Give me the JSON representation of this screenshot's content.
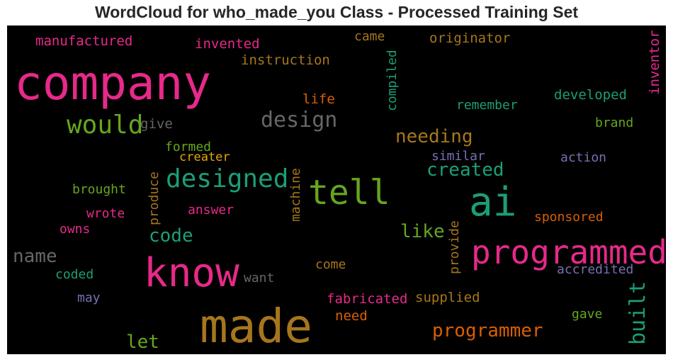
{
  "title": "WordCloud for who_made_you Class - Processed Training Set",
  "chart_data": {
    "type": "wordcloud",
    "title": "WordCloud for who_made_you Class - Processed Training Set",
    "background": "#000000",
    "words": [
      {
        "text": "made",
        "weight": 1.0,
        "color": "#a6761d",
        "orientation": "horizontal"
      },
      {
        "text": "company",
        "weight": 0.92,
        "color": "#e7298a",
        "orientation": "horizontal"
      },
      {
        "text": "know",
        "weight": 0.82,
        "color": "#e7298a",
        "orientation": "horizontal"
      },
      {
        "text": "programmed",
        "weight": 0.72,
        "color": "#e7298a",
        "orientation": "horizontal"
      },
      {
        "text": "ai",
        "weight": 0.72,
        "color": "#1b9e77",
        "orientation": "horizontal"
      },
      {
        "text": "tell",
        "weight": 0.66,
        "color": "#66a61e",
        "orientation": "horizontal"
      },
      {
        "text": "designed",
        "weight": 0.52,
        "color": "#1b9e77",
        "orientation": "horizontal"
      },
      {
        "text": "would",
        "weight": 0.5,
        "color": "#66a61e",
        "orientation": "horizontal"
      },
      {
        "text": "design",
        "weight": 0.44,
        "color": "#666666",
        "orientation": "horizontal"
      },
      {
        "text": "built",
        "weight": 0.44,
        "color": "#1b9e77",
        "orientation": "vertical"
      },
      {
        "text": "needing",
        "weight": 0.42,
        "color": "#a6761d",
        "orientation": "horizontal"
      },
      {
        "text": "programmer",
        "weight": 0.4,
        "color": "#d95f02",
        "orientation": "horizontal"
      },
      {
        "text": "created",
        "weight": 0.4,
        "color": "#1b9e77",
        "orientation": "horizontal"
      },
      {
        "text": "code",
        "weight": 0.38,
        "color": "#1b9e77",
        "orientation": "horizontal"
      },
      {
        "text": "like",
        "weight": 0.38,
        "color": "#66a61e",
        "orientation": "horizontal"
      },
      {
        "text": "name",
        "weight": 0.38,
        "color": "#666666",
        "orientation": "horizontal"
      },
      {
        "text": "let",
        "weight": 0.38,
        "color": "#66a61e",
        "orientation": "horizontal"
      },
      {
        "text": "manufactured",
        "weight": 0.3,
        "color": "#e7298a",
        "orientation": "horizontal"
      },
      {
        "text": "invented",
        "weight": 0.3,
        "color": "#e7298a",
        "orientation": "horizontal"
      },
      {
        "text": "instruction",
        "weight": 0.3,
        "color": "#a6761d",
        "orientation": "horizontal"
      },
      {
        "text": "came",
        "weight": 0.28,
        "color": "#a6761d",
        "orientation": "horizontal"
      },
      {
        "text": "originator",
        "weight": 0.3,
        "color": "#a6761d",
        "orientation": "horizontal"
      },
      {
        "text": "compiled",
        "weight": 0.28,
        "color": "#1b9e77",
        "orientation": "vertical"
      },
      {
        "text": "inventor",
        "weight": 0.3,
        "color": "#e7298a",
        "orientation": "vertical"
      },
      {
        "text": "life",
        "weight": 0.28,
        "color": "#d95f02",
        "orientation": "horizontal"
      },
      {
        "text": "developed",
        "weight": 0.3,
        "color": "#1b9e77",
        "orientation": "horizontal"
      },
      {
        "text": "remember",
        "weight": 0.28,
        "color": "#1b9e77",
        "orientation": "horizontal"
      },
      {
        "text": "give",
        "weight": 0.28,
        "color": "#666666",
        "orientation": "horizontal"
      },
      {
        "text": "brand",
        "weight": 0.28,
        "color": "#66a61e",
        "orientation": "horizontal"
      },
      {
        "text": "formed",
        "weight": 0.27,
        "color": "#66a61e",
        "orientation": "horizontal"
      },
      {
        "text": "creater",
        "weight": 0.27,
        "color": "#e6ab02",
        "orientation": "horizontal"
      },
      {
        "text": "similar",
        "weight": 0.27,
        "color": "#7570b3",
        "orientation": "horizontal"
      },
      {
        "text": "action",
        "weight": 0.27,
        "color": "#7570b3",
        "orientation": "horizontal"
      },
      {
        "text": "brought",
        "weight": 0.27,
        "color": "#66a61e",
        "orientation": "horizontal"
      },
      {
        "text": "produce",
        "weight": 0.27,
        "color": "#a6761d",
        "orientation": "vertical"
      },
      {
        "text": "machine",
        "weight": 0.27,
        "color": "#a6761d",
        "orientation": "vertical"
      },
      {
        "text": "answer",
        "weight": 0.27,
        "color": "#e7298a",
        "orientation": "horizontal"
      },
      {
        "text": "wrote",
        "weight": 0.27,
        "color": "#e7298a",
        "orientation": "horizontal"
      },
      {
        "text": "owns",
        "weight": 0.27,
        "color": "#e7298a",
        "orientation": "horizontal"
      },
      {
        "text": "sponsored",
        "weight": 0.28,
        "color": "#d95f02",
        "orientation": "horizontal"
      },
      {
        "text": "provide",
        "weight": 0.27,
        "color": "#a6761d",
        "orientation": "vertical"
      },
      {
        "text": "come",
        "weight": 0.27,
        "color": "#a6761d",
        "orientation": "horizontal"
      },
      {
        "text": "accredited",
        "weight": 0.27,
        "color": "#7570b3",
        "orientation": "horizontal"
      },
      {
        "text": "coded",
        "weight": 0.27,
        "color": "#1b9e77",
        "orientation": "horizontal"
      },
      {
        "text": "want",
        "weight": 0.27,
        "color": "#666666",
        "orientation": "horizontal"
      },
      {
        "text": "may",
        "weight": 0.27,
        "color": "#7570b3",
        "orientation": "horizontal"
      },
      {
        "text": "fabricated",
        "weight": 0.28,
        "color": "#e7298a",
        "orientation": "horizontal"
      },
      {
        "text": "supplied",
        "weight": 0.28,
        "color": "#a6761d",
        "orientation": "horizontal"
      },
      {
        "text": "need",
        "weight": 0.27,
        "color": "#d95f02",
        "orientation": "horizontal"
      },
      {
        "text": "gave",
        "weight": 0.27,
        "color": "#66a61e",
        "orientation": "horizontal"
      }
    ]
  }
}
